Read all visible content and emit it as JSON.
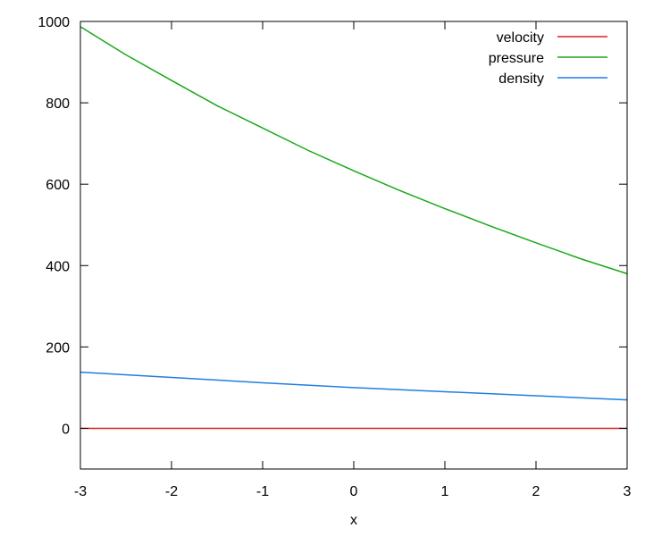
{
  "chart_data": {
    "type": "line",
    "title": "",
    "xlabel": "x",
    "ylabel": "",
    "xlim": [
      -3,
      3
    ],
    "ylim": [
      -100,
      1000
    ],
    "x_ticks": [
      "-3",
      "-2",
      "-1",
      "0",
      "1",
      "2",
      "3"
    ],
    "y_ticks": [
      "0",
      "200",
      "400",
      "600",
      "800",
      "1000"
    ],
    "grid": false,
    "legend_position": "top-right",
    "series": [
      {
        "name": "velocity",
        "color": "#e41a1c",
        "x": [
          -3,
          -2,
          -1,
          0,
          1,
          2,
          3
        ],
        "y": [
          0,
          0,
          0,
          0,
          0,
          0,
          0
        ]
      },
      {
        "name": "pressure",
        "color": "#1aa81a",
        "x": [
          -3,
          -2.5,
          -2,
          -1.5,
          -1,
          -0.5,
          0,
          0.5,
          1,
          1.5,
          2,
          2.5,
          3
        ],
        "y": [
          987,
          918,
          855,
          793,
          738,
          683,
          633,
          585,
          540,
          497,
          456,
          416,
          380
        ]
      },
      {
        "name": "density",
        "color": "#1f7fe0",
        "x": [
          -3,
          -2,
          -1,
          0,
          1,
          2,
          3
        ],
        "y": [
          138,
          125,
          112,
          100,
          90,
          80,
          70
        ]
      }
    ]
  }
}
